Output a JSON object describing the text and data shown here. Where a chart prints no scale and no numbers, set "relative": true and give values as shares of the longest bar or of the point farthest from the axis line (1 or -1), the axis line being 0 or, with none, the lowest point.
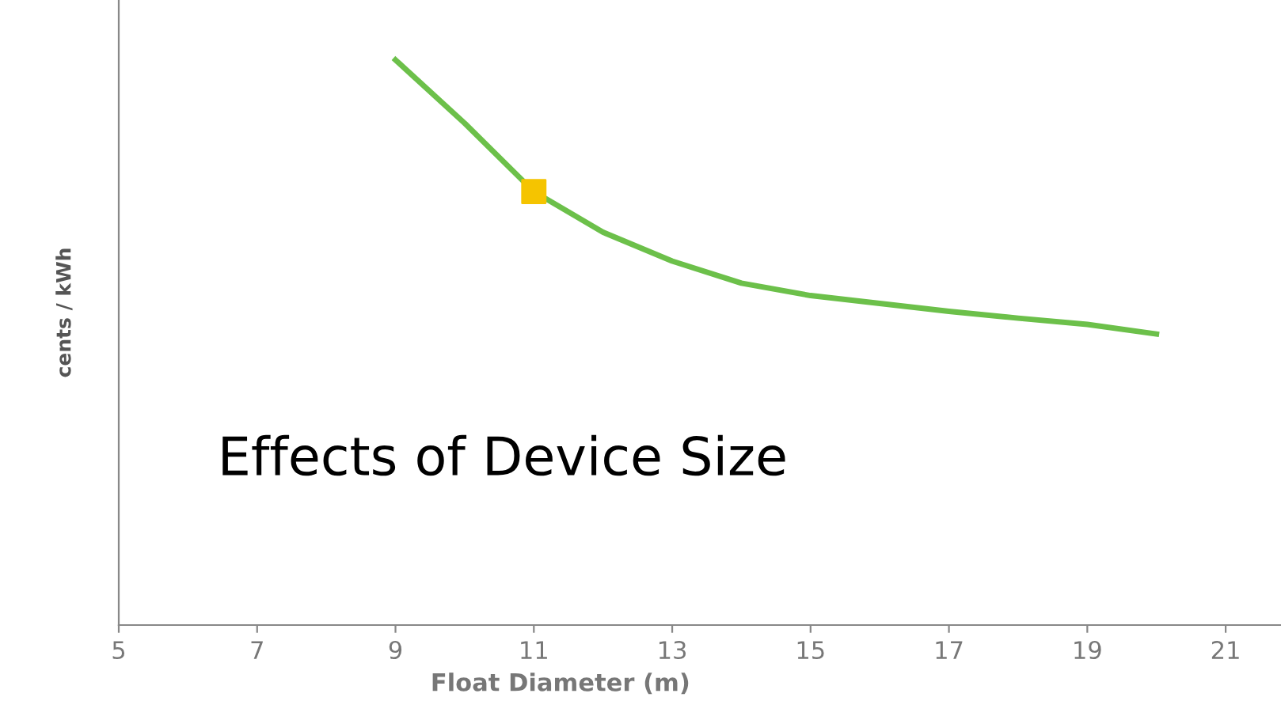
{
  "chart_data": {
    "type": "line",
    "relative": true,
    "xlabel": "Float Diameter (m)",
    "ylabel": "cents / kWh",
    "xlim": [
      5,
      21.8
    ],
    "xticks": [
      5,
      7,
      9,
      11,
      13,
      15,
      17,
      19,
      21
    ],
    "grid": false,
    "marker": "none",
    "line_style": "solid",
    "annotations": [
      "Effects of Device Size"
    ],
    "series": [
      {
        "color": "#6cc04a",
        "x": [
          9,
          10,
          11,
          12,
          13,
          14,
          15,
          16,
          17,
          18,
          19,
          20
        ],
        "values": [
          1.0,
          0.888,
          0.767,
          0.695,
          0.644,
          0.605,
          0.583,
          0.569,
          0.555,
          0.543,
          0.532,
          0.515
        ]
      },
      {
        "type": "scatter",
        "color": "#f5c400",
        "marker": "square",
        "x": [
          11
        ],
        "values": [
          0.767
        ]
      }
    ]
  }
}
